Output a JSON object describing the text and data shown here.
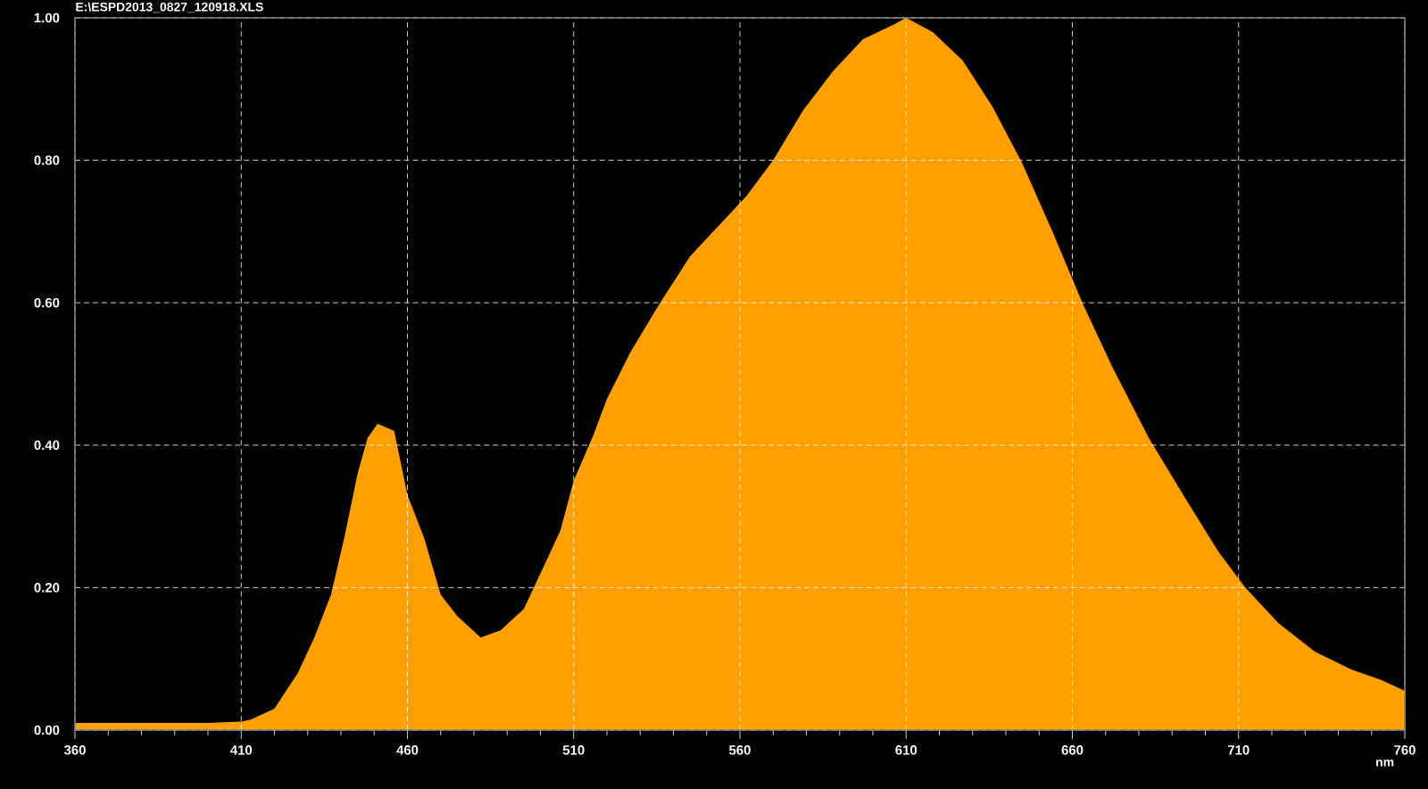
{
  "chart_data": {
    "type": "area",
    "title": "E:\\ESPD2013_0827_120918.XLS",
    "xlabel": "nm",
    "x": [
      360,
      380,
      400,
      410,
      413,
      420,
      427,
      432,
      437,
      441,
      445,
      448,
      451,
      456,
      460,
      465,
      470,
      475,
      482,
      488,
      495,
      501,
      506,
      510,
      516,
      520,
      527,
      536,
      545,
      552,
      562,
      570,
      579,
      588,
      597,
      606,
      610,
      618,
      627,
      636,
      645,
      654,
      663,
      672,
      683,
      694,
      704,
      712,
      722,
      733,
      744,
      753,
      760
    ],
    "values": [
      0.01,
      0.01,
      0.01,
      0.012,
      0.015,
      0.03,
      0.08,
      0.13,
      0.19,
      0.27,
      0.36,
      0.41,
      0.43,
      0.42,
      0.33,
      0.27,
      0.19,
      0.16,
      0.13,
      0.14,
      0.17,
      0.23,
      0.28,
      0.35,
      0.415,
      0.465,
      0.53,
      0.6,
      0.665,
      0.7,
      0.75,
      0.8,
      0.87,
      0.925,
      0.97,
      0.99,
      1.0,
      0.98,
      0.94,
      0.875,
      0.795,
      0.7,
      0.6,
      0.51,
      0.41,
      0.325,
      0.25,
      0.2,
      0.15,
      0.11,
      0.085,
      0.07,
      0.055
    ],
    "color": "#ffa000",
    "xlim": [
      360,
      760
    ],
    "ylim": [
      0,
      1
    ],
    "xticks": [
      360,
      410,
      460,
      510,
      560,
      610,
      660,
      710,
      760
    ],
    "yticks": [
      {
        "value": 0,
        "label": "0.00"
      },
      {
        "value": 0.2,
        "label": "0.20"
      },
      {
        "value": 0.4,
        "label": "0.40"
      },
      {
        "value": 0.6,
        "label": "0.60"
      },
      {
        "value": 0.8,
        "label": "0.80"
      },
      {
        "value": 1,
        "label": "1.00"
      }
    ],
    "grid": true
  }
}
